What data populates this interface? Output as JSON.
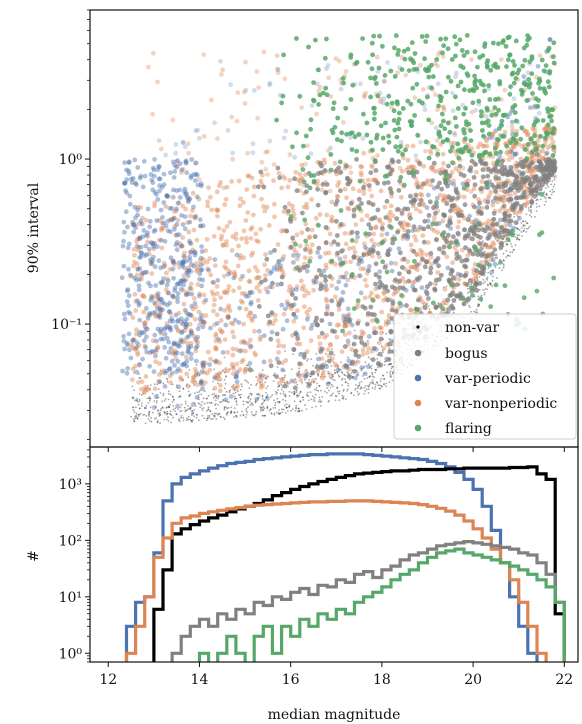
{
  "chart_data": [
    {
      "type": "scatter",
      "xlabel": "",
      "ylabel": "90% interval",
      "y_scale": "log",
      "xlim": [
        11.6,
        22.3
      ],
      "ylim": [
        0.018,
        8.0
      ],
      "y_ticks": [
        {
          "value": 1.0,
          "label": "10⁰"
        },
        {
          "value": 0.1,
          "label": "10⁻¹"
        }
      ],
      "legend": {
        "placement": "lower-right",
        "entries": [
          {
            "name": "non-var",
            "color": "#000000",
            "marker": "small"
          },
          {
            "name": "bogus",
            "color": "#808080",
            "marker": "dot"
          },
          {
            "name": "var-periodic",
            "color": "#4c72b0",
            "marker": "dot"
          },
          {
            "name": "var-nonperiodic",
            "color": "#dd8452",
            "marker": "dot"
          },
          {
            "name": "flaring",
            "color": "#55a868",
            "marker": "dot"
          }
        ]
      },
      "series": [
        {
          "name": "non-var",
          "color": "#000000",
          "x_range": [
            12.5,
            21.8
          ],
          "y_floor_at": [
            [
              13.5,
              0.028
            ],
            [
              16.0,
              0.032
            ],
            [
              18.0,
              0.045
            ],
            [
              20.0,
              0.12
            ],
            [
              21.0,
              0.35
            ],
            [
              21.8,
              0.7
            ]
          ]
        },
        {
          "name": "bogus",
          "color": "#808080",
          "x_range": [
            14.0,
            21.8
          ],
          "y_range": [
            0.04,
            1.0
          ]
        },
        {
          "name": "var-periodic",
          "color": "#4c72b0",
          "x_range": [
            12.2,
            21.8
          ],
          "y_range": [
            0.03,
            5.0
          ]
        },
        {
          "name": "var-nonperiodic",
          "color": "#dd8452",
          "x_range": [
            12.5,
            21.8
          ],
          "y_range": [
            0.03,
            5.0
          ]
        },
        {
          "name": "flaring",
          "color": "#55a868",
          "x_range": [
            15.0,
            21.8
          ],
          "y_range": [
            0.04,
            6.0
          ]
        }
      ]
    },
    {
      "type": "histogram",
      "xlabel": "median magnitude",
      "ylabel": "#",
      "y_scale": "log",
      "xlim": [
        11.6,
        22.3
      ],
      "ylim": [
        0.7,
        4500
      ],
      "x_ticks": [
        12,
        14,
        16,
        18,
        20,
        22
      ],
      "y_ticks": [
        {
          "value": 1,
          "label": "10⁰"
        },
        {
          "value": 10,
          "label": "10¹"
        },
        {
          "value": 100,
          "label": "10²"
        },
        {
          "value": 1000,
          "label": "10³"
        }
      ],
      "bin_start": 12.0,
      "bin_width": 0.2,
      "series": [
        {
          "name": "non-var",
          "color": "#000000",
          "counts": [
            0,
            0,
            0,
            0,
            0,
            6,
            30,
            130,
            160,
            190,
            220,
            250,
            280,
            320,
            360,
            400,
            450,
            520,
            620,
            700,
            800,
            900,
            1000,
            1100,
            1200,
            1300,
            1400,
            1500,
            1550,
            1600,
            1650,
            1700,
            1700,
            1750,
            1800,
            1800,
            1800,
            1850,
            1850,
            1900,
            1900,
            1900,
            1900,
            1900,
            1950,
            1950,
            2000,
            1500,
            1200,
            5,
            0
          ]
        },
        {
          "name": "bogus",
          "color": "#808080",
          "counts": [
            0,
            0,
            0,
            0,
            0,
            0,
            0,
            1,
            2,
            3,
            4,
            3,
            5,
            4,
            6,
            5,
            8,
            7,
            10,
            9,
            12,
            14,
            11,
            16,
            15,
            20,
            18,
            25,
            28,
            22,
            30,
            35,
            45,
            55,
            60,
            70,
            80,
            85,
            90,
            95,
            90,
            85,
            80,
            75,
            70,
            60,
            55,
            40,
            25,
            8,
            0
          ]
        },
        {
          "name": "var-periodic",
          "color": "#4c72b0",
          "counts": [
            0,
            0,
            3,
            8,
            10,
            60,
            500,
            1000,
            1300,
            1500,
            1700,
            1900,
            2100,
            2300,
            2400,
            2500,
            2700,
            2800,
            2900,
            3000,
            3100,
            3200,
            3300,
            3300,
            3400,
            3400,
            3400,
            3400,
            3300,
            3200,
            3100,
            3000,
            2900,
            2800,
            2700,
            2500,
            2300,
            2000,
            1600,
            1200,
            800,
            400,
            150,
            40,
            10,
            3,
            1,
            0,
            0,
            0,
            0
          ]
        },
        {
          "name": "var-nonperiodic",
          "color": "#dd8452",
          "counts": [
            0,
            0,
            1,
            3,
            10,
            50,
            110,
            200,
            250,
            270,
            300,
            320,
            340,
            360,
            380,
            400,
            420,
            430,
            440,
            450,
            460,
            470,
            480,
            480,
            490,
            490,
            500,
            500,
            500,
            490,
            480,
            470,
            460,
            450,
            430,
            400,
            370,
            330,
            280,
            220,
            160,
            110,
            70,
            40,
            20,
            8,
            3,
            1,
            0,
            0,
            0
          ]
        },
        {
          "name": "flaring",
          "color": "#55a868",
          "counts": [
            0,
            0,
            0,
            0,
            0,
            0,
            0,
            0,
            0,
            0,
            1,
            0,
            1,
            2,
            1,
            0,
            2,
            3,
            1,
            3,
            2,
            4,
            3,
            5,
            4,
            6,
            5,
            8,
            10,
            12,
            15,
            20,
            25,
            30,
            40,
            50,
            60,
            65,
            70,
            60,
            55,
            50,
            45,
            40,
            35,
            30,
            25,
            20,
            15,
            8,
            0
          ]
        }
      ]
    }
  ]
}
